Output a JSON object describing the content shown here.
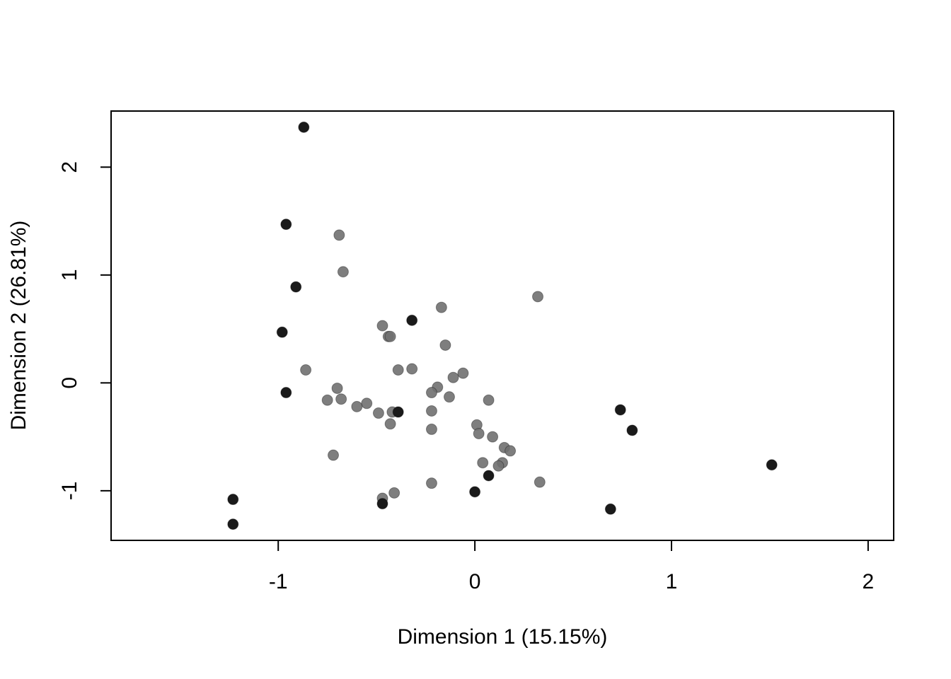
{
  "chart_data": {
    "type": "scatter",
    "title": "",
    "xlabel": "Dimension 1 (15.15%)",
    "ylabel": "Dimension 2 (26.81%)",
    "xlim": [
      -1.85,
      2.13
    ],
    "ylim": [
      -1.46,
      2.52
    ],
    "x_ticks": [
      -1,
      0,
      1,
      2
    ],
    "x_tick_labels": [
      "-1",
      "0",
      "1",
      "2"
    ],
    "y_ticks": [
      -1,
      0,
      1,
      2
    ],
    "y_tick_labels": [
      "-1",
      "0",
      "1",
      "2"
    ],
    "grid": false,
    "legend": "none",
    "series": [
      {
        "color": "#1a1a1a",
        "points": [
          [
            -0.87,
            2.37
          ],
          [
            -0.96,
            1.47
          ],
          [
            -0.91,
            0.89
          ],
          [
            -0.98,
            0.47
          ],
          [
            -0.96,
            -0.09
          ],
          [
            -0.32,
            0.58
          ],
          [
            -0.39,
            -0.27
          ],
          [
            -1.23,
            -1.08
          ],
          [
            -1.23,
            -1.31
          ],
          [
            -0.47,
            -1.12
          ],
          [
            0.0,
            -1.01
          ],
          [
            0.07,
            -0.86
          ],
          [
            0.69,
            -1.17
          ],
          [
            0.74,
            -0.25
          ],
          [
            0.8,
            -0.44
          ],
          [
            1.51,
            -0.76
          ]
        ]
      },
      {
        "color": "#707070",
        "points": [
          [
            -0.69,
            1.37
          ],
          [
            -0.67,
            1.03
          ],
          [
            0.32,
            0.8
          ],
          [
            -0.17,
            0.7
          ],
          [
            -0.47,
            0.53
          ],
          [
            -0.44,
            0.43
          ],
          [
            -0.43,
            0.43
          ],
          [
            -0.15,
            0.35
          ],
          [
            -0.86,
            0.12
          ],
          [
            -0.39,
            0.12
          ],
          [
            -0.32,
            0.13
          ],
          [
            -0.06,
            0.09
          ],
          [
            -0.11,
            0.05
          ],
          [
            -0.7,
            -0.05
          ],
          [
            -0.19,
            -0.04
          ],
          [
            -0.22,
            -0.09
          ],
          [
            -0.13,
            -0.13
          ],
          [
            -0.75,
            -0.16
          ],
          [
            -0.68,
            -0.15
          ],
          [
            0.07,
            -0.16
          ],
          [
            -0.55,
            -0.19
          ],
          [
            -0.6,
            -0.22
          ],
          [
            -0.22,
            -0.26
          ],
          [
            -0.42,
            -0.27
          ],
          [
            -0.49,
            -0.28
          ],
          [
            -0.43,
            -0.38
          ],
          [
            0.01,
            -0.39
          ],
          [
            -0.22,
            -0.43
          ],
          [
            0.02,
            -0.47
          ],
          [
            0.09,
            -0.5
          ],
          [
            0.15,
            -0.6
          ],
          [
            0.18,
            -0.63
          ],
          [
            -0.72,
            -0.67
          ],
          [
            0.04,
            -0.74
          ],
          [
            0.14,
            -0.74
          ],
          [
            0.12,
            -0.77
          ],
          [
            -0.22,
            -0.93
          ],
          [
            0.33,
            -0.92
          ],
          [
            -0.41,
            -1.02
          ],
          [
            -0.47,
            -1.07
          ]
        ]
      }
    ]
  }
}
